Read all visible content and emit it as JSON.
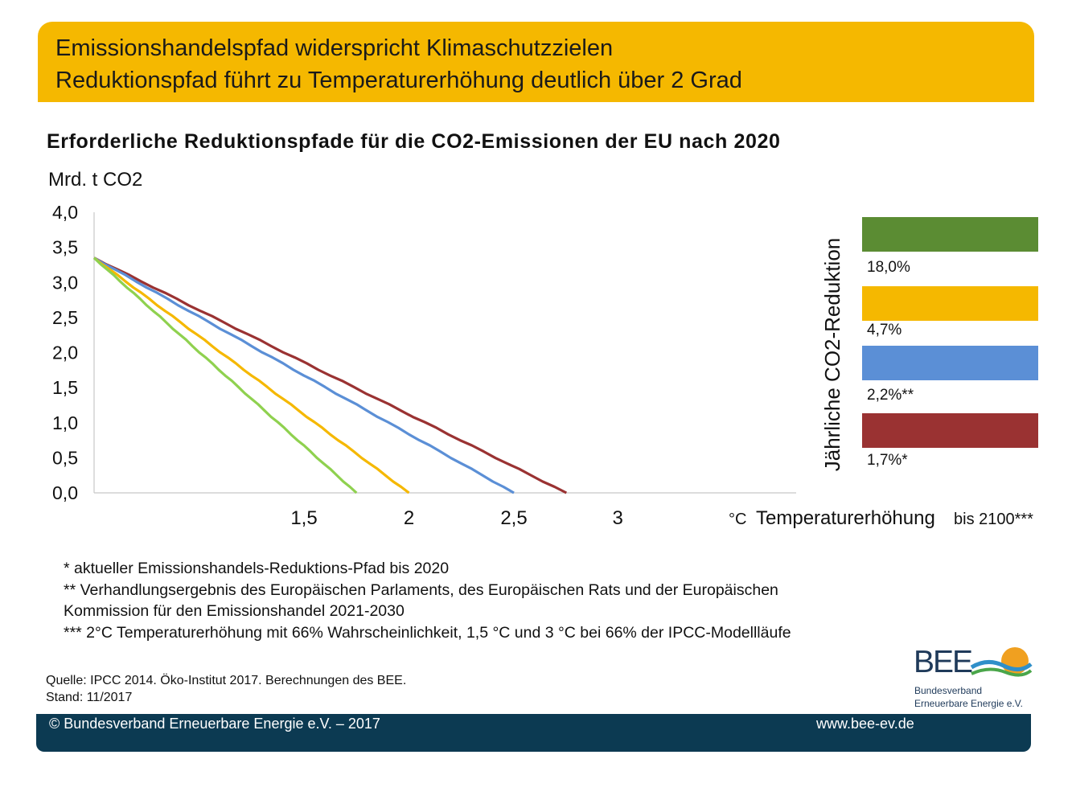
{
  "header": {
    "line1": "Emissionshandelspfad widerspricht Klimaschutzzielen",
    "line2": "Reduktionspfad führt zu Temperaturerhöhung deutlich über 2 Grad",
    "background_color": "#f5b800"
  },
  "chart_data": {
    "type": "line",
    "title": "Erforderliche Reduktionspfade für die CO2-Emissionen der EU nach 2020",
    "ylabel": "Mrd. t CO2",
    "ylim": [
      0,
      4
    ],
    "y_ticks": [
      "4,0",
      "3,5",
      "3,0",
      "2,5",
      "2,0",
      "1,5",
      "1,0",
      "0,5",
      "0,0"
    ],
    "x_annotation": {
      "ticks": [
        "1,5",
        "2",
        "2,5",
        "3"
      ],
      "unit": "°C",
      "label": "Temperaturerhöhung",
      "suffix": "bis 2100***"
    },
    "legend_title": "Jährliche CO2-Reduktion",
    "grid": false,
    "series": [
      {
        "name": "18,0%",
        "color": "#5f8a32",
        "legend_color": "#5b8c33",
        "line_color": "#8fd14f",
        "start": 3.35,
        "end_temperature": 1.75
      },
      {
        "name": "4,7%",
        "color": "#f5b800",
        "legend_color": "#f5b800",
        "line_color": "#f5b800",
        "start": 3.35,
        "end_temperature": 2.0
      },
      {
        "name": "2,2%**",
        "color": "#5b8fd6",
        "legend_color": "#5b8fd6",
        "line_color": "#5b8fd6",
        "start": 3.35,
        "end_temperature": 2.5
      },
      {
        "name": "1,7%*",
        "color": "#9a3232",
        "legend_color": "#9a3232",
        "line_color": "#9a3232",
        "start": 3.35,
        "end_temperature": 2.75
      }
    ]
  },
  "notes": [
    "* aktueller Emissionshandels-Reduktions-Pfad bis 2020",
    "** Verhandlungsergebnis des Europäischen Parlaments, des Europäischen Rats und der Europäischen Kommission für den Emissionshandel 2021-2030",
    "*** 2°C Temperaturerhöhung mit 66% Wahrscheinlichkeit, 1,5 °C und 3 °C bei 66% der IPCC-Modellläufe"
  ],
  "source": {
    "line1": "Quelle: IPCC 2014. Öko-Institut 2017. Berechnungen des BEE.",
    "line2": "Stand: 11/2017"
  },
  "logo": {
    "wordmark": "BEE",
    "line1": "Bundesverband",
    "line2": "Erneuerbare Energie e.V."
  },
  "footer": {
    "copyright": "© Bundesverband Erneuerbare Energie e.V. – 2017",
    "website": "www.bee-ev.de",
    "background_color": "#0c3a52"
  }
}
